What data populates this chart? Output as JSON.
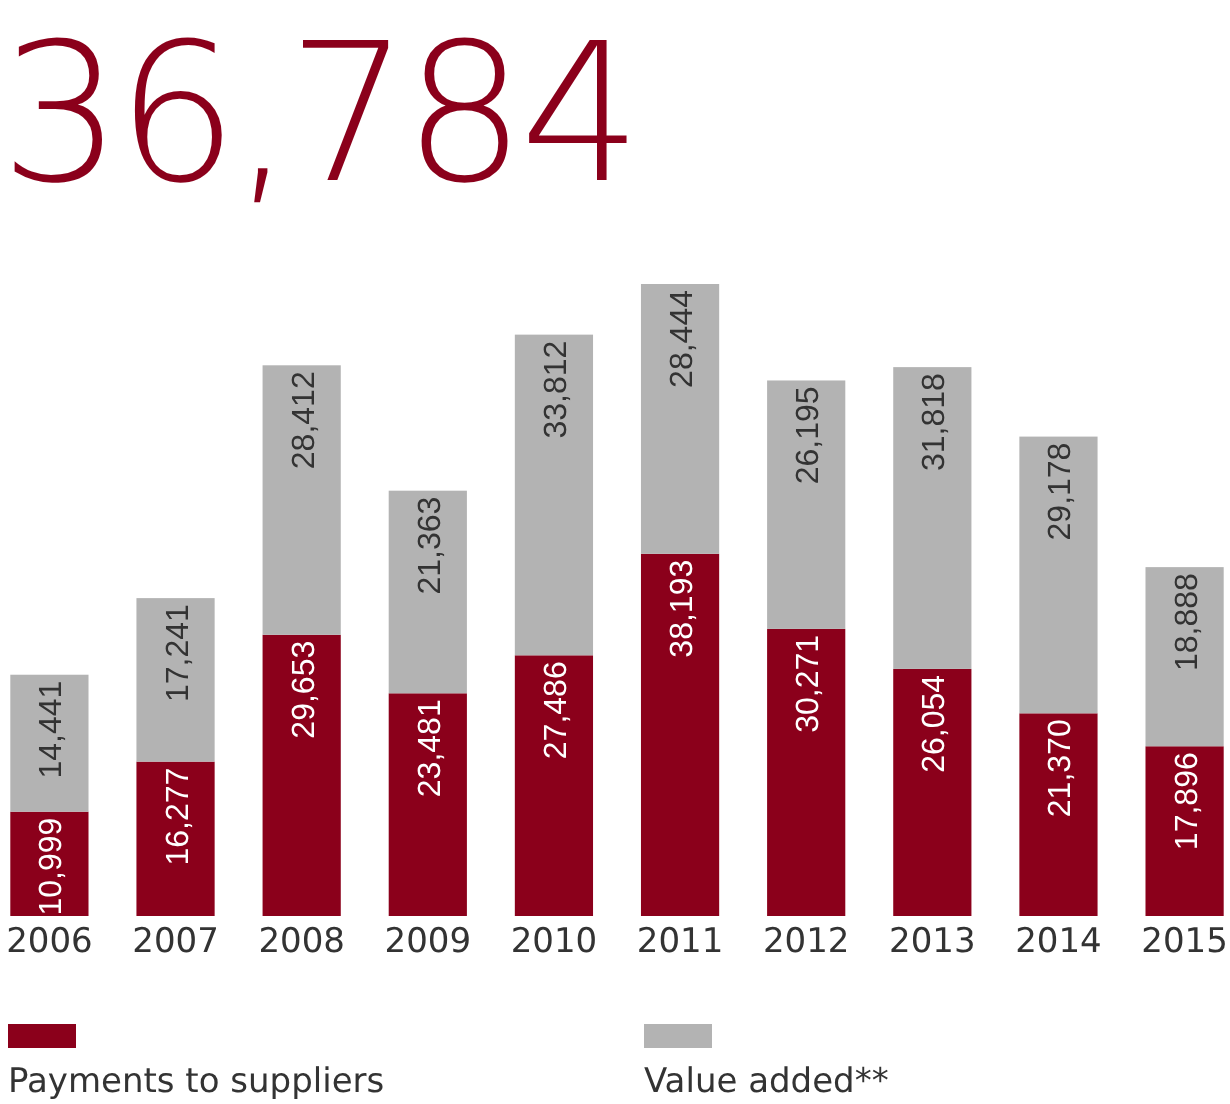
{
  "chart_data": {
    "type": "bar",
    "title": "36,784",
    "stacked": true,
    "legend": "bottom",
    "categories": [
      "2006",
      "2007",
      "2008",
      "2009",
      "2010",
      "2011",
      "2012",
      "2013",
      "2014",
      "2015"
    ],
    "series": [
      {
        "name": "Payments to suppliers",
        "color": "#8b001b",
        "values": [
          10999,
          16277,
          29653,
          23481,
          27486,
          38193,
          30271,
          26054,
          21370,
          17896
        ],
        "value_labels": [
          "10,999",
          "16,277",
          "29,653",
          "23,481",
          "27,486",
          "38,193",
          "30,271",
          "26,054",
          "21,370",
          "17,896"
        ]
      },
      {
        "name": "Value added**",
        "color": "#b3b3b3",
        "values": [
          14441,
          17241,
          28412,
          21363,
          33812,
          28444,
          26195,
          31818,
          29178,
          18888
        ],
        "value_labels": [
          "14,441",
          "17,241",
          "28,412",
          "21,363",
          "33,812",
          "28,444",
          "26,195",
          "31,818",
          "29,178",
          "18,888"
        ]
      }
    ]
  }
}
